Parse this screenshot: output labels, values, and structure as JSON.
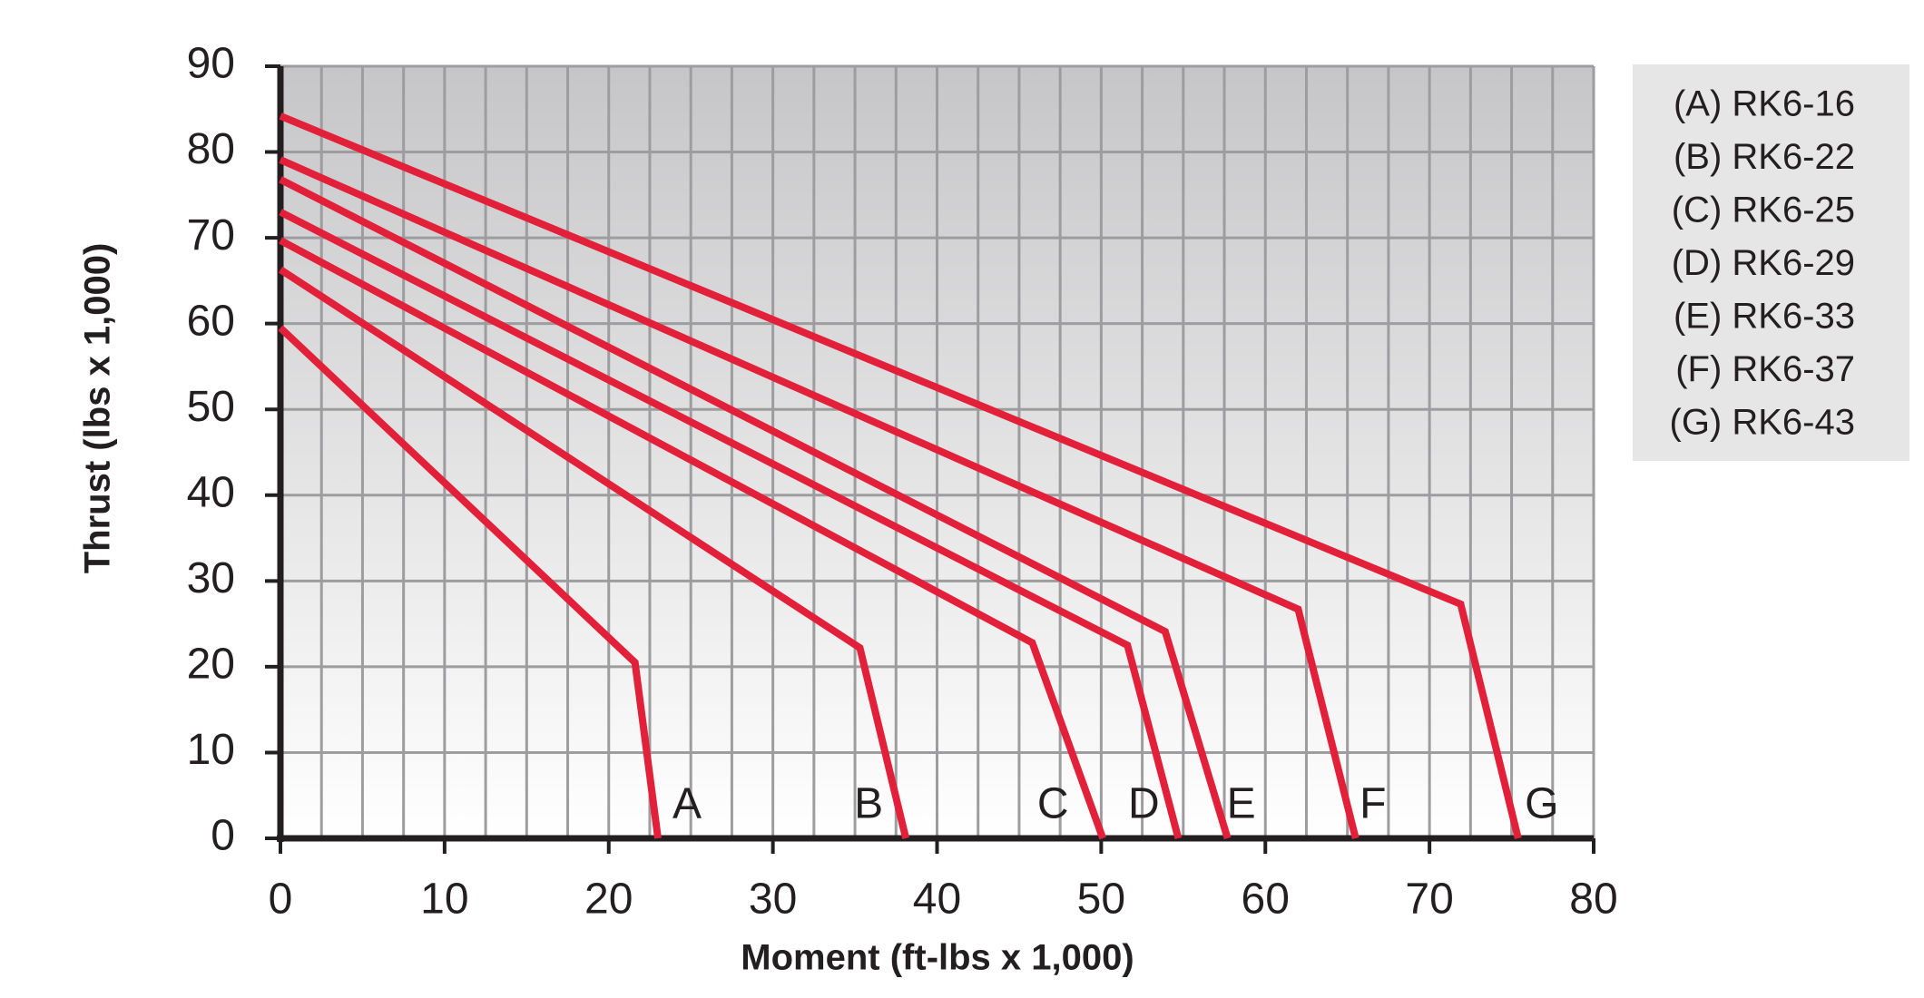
{
  "chart_data": {
    "type": "line",
    "x_label": "Moment (ft-lbs x 1,000)",
    "y_label": "Thrust (lbs x 1,000)",
    "xlim": [
      0,
      80
    ],
    "xticks": [
      0,
      10,
      20,
      30,
      40,
      50,
      60,
      70,
      80
    ],
    "ylim": [
      0,
      90
    ],
    "yticks": [
      0,
      10,
      20,
      30,
      40,
      50,
      60,
      70,
      80,
      90
    ],
    "grid": true,
    "legend": "upper right",
    "series": [
      {
        "name": "(A) RK6-16",
        "label": "A",
        "color": "#e3203a",
        "x": [
          0,
          21.6,
          23.0
        ],
        "values": [
          59.5,
          20.5,
          0
        ]
      },
      {
        "name": "(B) RK6-22",
        "label": "B",
        "color": "#e3203a",
        "x": [
          0,
          35.3,
          38.1
        ],
        "values": [
          66.3,
          22.2,
          0
        ]
      },
      {
        "name": "(C) RK6-25",
        "label": "C",
        "color": "#e3203a",
        "x": [
          0,
          45.8,
          50.1
        ],
        "values": [
          69.7,
          22.8,
          0
        ]
      },
      {
        "name": "(D) RK6-29",
        "label": "D",
        "color": "#e3203a",
        "x": [
          0,
          51.6,
          54.7
        ],
        "values": [
          73.0,
          22.5,
          0
        ]
      },
      {
        "name": "(E) RK6-33",
        "label": "E",
        "color": "#e3203a",
        "x": [
          0,
          53.9,
          57.7
        ],
        "values": [
          76.8,
          24.1,
          0
        ]
      },
      {
        "name": "(F) RK6-37",
        "label": "F",
        "color": "#e3203a",
        "x": [
          0,
          62.0,
          65.5
        ],
        "values": [
          79.1,
          26.7,
          0
        ]
      },
      {
        "name": "(G) RK6-43",
        "label": "G",
        "color": "#e3203a",
        "x": [
          0,
          71.9,
          75.4
        ],
        "values": [
          84.2,
          27.3,
          0
        ]
      }
    ]
  }
}
